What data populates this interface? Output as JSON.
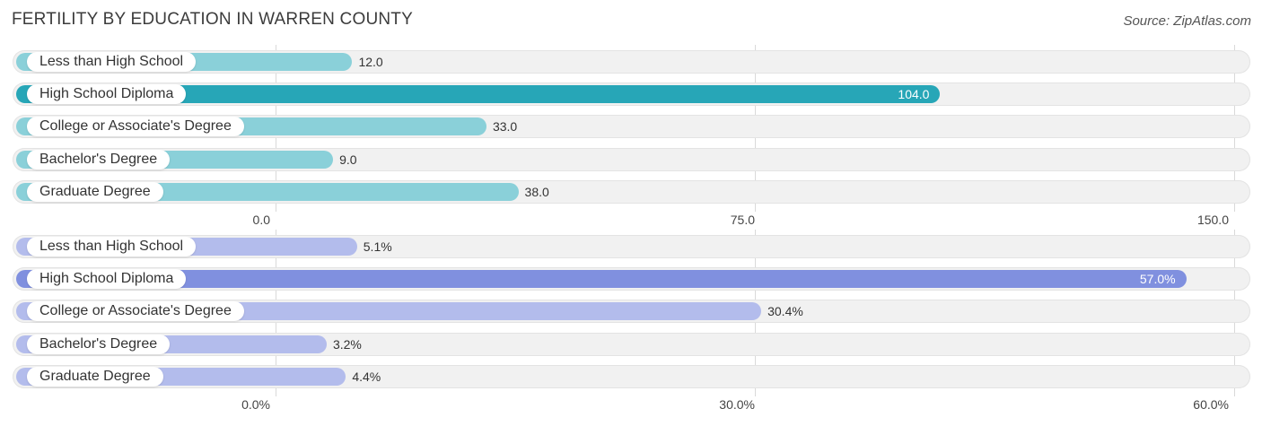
{
  "title": "FERTILITY BY EDUCATION IN WARREN COUNTY",
  "source": "Source: ZipAtlas.com",
  "colors": {
    "panel1_light": "#8ad0d9",
    "panel1_dark": "#27a6b7",
    "panel2_light": "#b3bcec",
    "panel2_dark": "#8090df"
  },
  "chart_data": [
    {
      "type": "bar",
      "orientation": "horizontal",
      "categories": [
        "Less than High School",
        "High School Diploma",
        "College or Associate's Degree",
        "Bachelor's Degree",
        "Graduate Degree"
      ],
      "values": [
        12.0,
        104.0,
        33.0,
        9.0,
        38.0
      ],
      "value_labels": [
        "12.0",
        "104.0",
        "33.0",
        "9.0",
        "38.0"
      ],
      "xlim": [
        0,
        150
      ],
      "ticks": [
        0,
        75,
        150
      ],
      "tick_labels": [
        "0.0",
        "75.0",
        "150.0"
      ],
      "highlight_index": 1
    },
    {
      "type": "bar",
      "orientation": "horizontal",
      "categories": [
        "Less than High School",
        "High School Diploma",
        "College or Associate's Degree",
        "Bachelor's Degree",
        "Graduate Degree"
      ],
      "values": [
        5.1,
        57.0,
        30.4,
        3.2,
        4.4
      ],
      "value_labels": [
        "5.1%",
        "57.0%",
        "30.4%",
        "3.2%",
        "4.4%"
      ],
      "xlim": [
        0,
        60
      ],
      "ticks": [
        0,
        30,
        60
      ],
      "tick_labels": [
        "0.0%",
        "30.0%",
        "60.0%"
      ],
      "highlight_index": 1
    }
  ]
}
